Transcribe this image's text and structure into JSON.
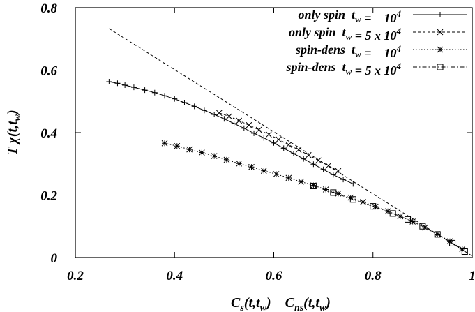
{
  "chart_data": {
    "type": "line",
    "xlabel": "C_s(t,t_w)   C_ns(t,t_w)",
    "ylabel": "T χ(t,t_w)",
    "xlim": [
      0.2,
      1.0
    ],
    "ylim": [
      0,
      0.8
    ],
    "x_ticks": [
      "0.2",
      "0.4",
      "0.6",
      "0.8",
      "1"
    ],
    "y_ticks": [
      "0",
      "0.2",
      "0.4",
      "0.6",
      "0.8"
    ],
    "grid": false,
    "legend_position": "top-right",
    "series": [
      {
        "name": "only spin  t_w = 10^4",
        "line": "solid",
        "marker": "plus",
        "color": "#000000",
        "x": [
          0.268,
          0.285,
          0.3,
          0.318,
          0.34,
          0.36,
          0.38,
          0.4,
          0.42,
          0.44,
          0.46,
          0.48,
          0.5,
          0.52,
          0.54,
          0.56,
          0.58,
          0.6,
          0.62,
          0.64,
          0.66,
          0.68,
          0.7,
          0.72,
          0.74,
          0.76
        ],
        "y": [
          0.563,
          0.558,
          0.552,
          0.545,
          0.536,
          0.528,
          0.518,
          0.508,
          0.496,
          0.484,
          0.471,
          0.458,
          0.444,
          0.429,
          0.414,
          0.398,
          0.383,
          0.367,
          0.35,
          0.333,
          0.316,
          0.299,
          0.282,
          0.265,
          0.25,
          0.236
        ]
      },
      {
        "name": "only spin  t_w = 5 x 10^4",
        "line": "dashed",
        "marker": "cross",
        "color": "#000000",
        "x": [
          0.49,
          0.51,
          0.53,
          0.55,
          0.57,
          0.59,
          0.61,
          0.63,
          0.65,
          0.67,
          0.69,
          0.71,
          0.73
        ],
        "y": [
          0.463,
          0.452,
          0.438,
          0.424,
          0.409,
          0.394,
          0.378,
          0.361,
          0.345,
          0.328,
          0.311,
          0.294,
          0.277
        ]
      },
      {
        "name": "spin-dens  t_w = 10^4",
        "line": "dotted",
        "marker": "star",
        "color": "#000000",
        "x": [
          0.38,
          0.405,
          0.43,
          0.455,
          0.48,
          0.505,
          0.53,
          0.555,
          0.58,
          0.605,
          0.63,
          0.655,
          0.68,
          0.705,
          0.73,
          0.755,
          0.78,
          0.805,
          0.83,
          0.855,
          0.88,
          0.905,
          0.93,
          0.955,
          0.98
        ],
        "y": [
          0.366,
          0.357,
          0.346,
          0.336,
          0.325,
          0.313,
          0.301,
          0.29,
          0.278,
          0.267,
          0.255,
          0.243,
          0.231,
          0.218,
          0.205,
          0.192,
          0.178,
          0.163,
          0.148,
          0.132,
          0.115,
          0.096,
          0.075,
          0.052,
          0.027
        ]
      },
      {
        "name": "spin-dens  t_w = 5 x 10^4",
        "line": "dashdot",
        "marker": "square",
        "color": "#000000",
        "x": [
          0.68,
          0.72,
          0.76,
          0.8,
          0.84,
          0.87,
          0.9,
          0.93,
          0.96,
          0.985
        ],
        "y": [
          0.229,
          0.208,
          0.186,
          0.164,
          0.141,
          0.122,
          0.1,
          0.074,
          0.046,
          0.019
        ]
      },
      {
        "name": "",
        "line": "dashed-fit",
        "marker": "none",
        "color": "#000000",
        "x": [
          0.268,
          1.0
        ],
        "y": [
          0.733,
          0.005
        ]
      }
    ]
  },
  "legend": {
    "entries": [
      {
        "text": "only spin  t_w =    10^4"
      },
      {
        "text": "only spin  t_w = 5 x 10^4"
      },
      {
        "text": "spin-dens  t_w =    10^4"
      },
      {
        "text": "spin-dens  t_w = 5 x 10^4"
      }
    ]
  }
}
